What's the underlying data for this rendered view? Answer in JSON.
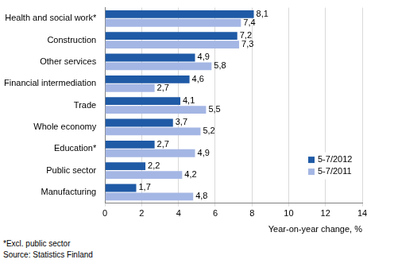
{
  "chart_data": {
    "type": "bar",
    "orientation": "horizontal",
    "categories": [
      "Health and social work*",
      "Construction",
      "Other services",
      "Financial intermediation",
      "Trade",
      "Whole economy",
      "Education*",
      "Public sector",
      "Manufacturing"
    ],
    "series": [
      {
        "name": "5-7/2012",
        "color": "#1f5aa6",
        "values": [
          8.1,
          7.2,
          4.9,
          4.6,
          4.1,
          3.7,
          2.7,
          2.2,
          1.7
        ],
        "value_labels": [
          "8,1",
          "7,2",
          "4,9",
          "4,6",
          "4,1",
          "3,7",
          "2,7",
          "2,2",
          "1,7"
        ]
      },
      {
        "name": "5-7/2011",
        "color": "#a4b6e4",
        "values": [
          7.4,
          7.3,
          5.8,
          2.7,
          5.5,
          5.2,
          4.9,
          4.2,
          4.8
        ],
        "value_labels": [
          "7,4",
          "7,3",
          "5,8",
          "2,7",
          "5,5",
          "5,2",
          "4,9",
          "4,2",
          "4,8"
        ]
      }
    ],
    "xlabel": "Year-on-year change, %",
    "xlim": [
      0,
      14
    ],
    "xticks": [
      0,
      2,
      4,
      6,
      8,
      10,
      12,
      14
    ],
    "grid": true,
    "legend": "lower right",
    "data_labels": true,
    "annotations": [
      "*Excl. public sector",
      "Source: Statistics Finland"
    ]
  }
}
